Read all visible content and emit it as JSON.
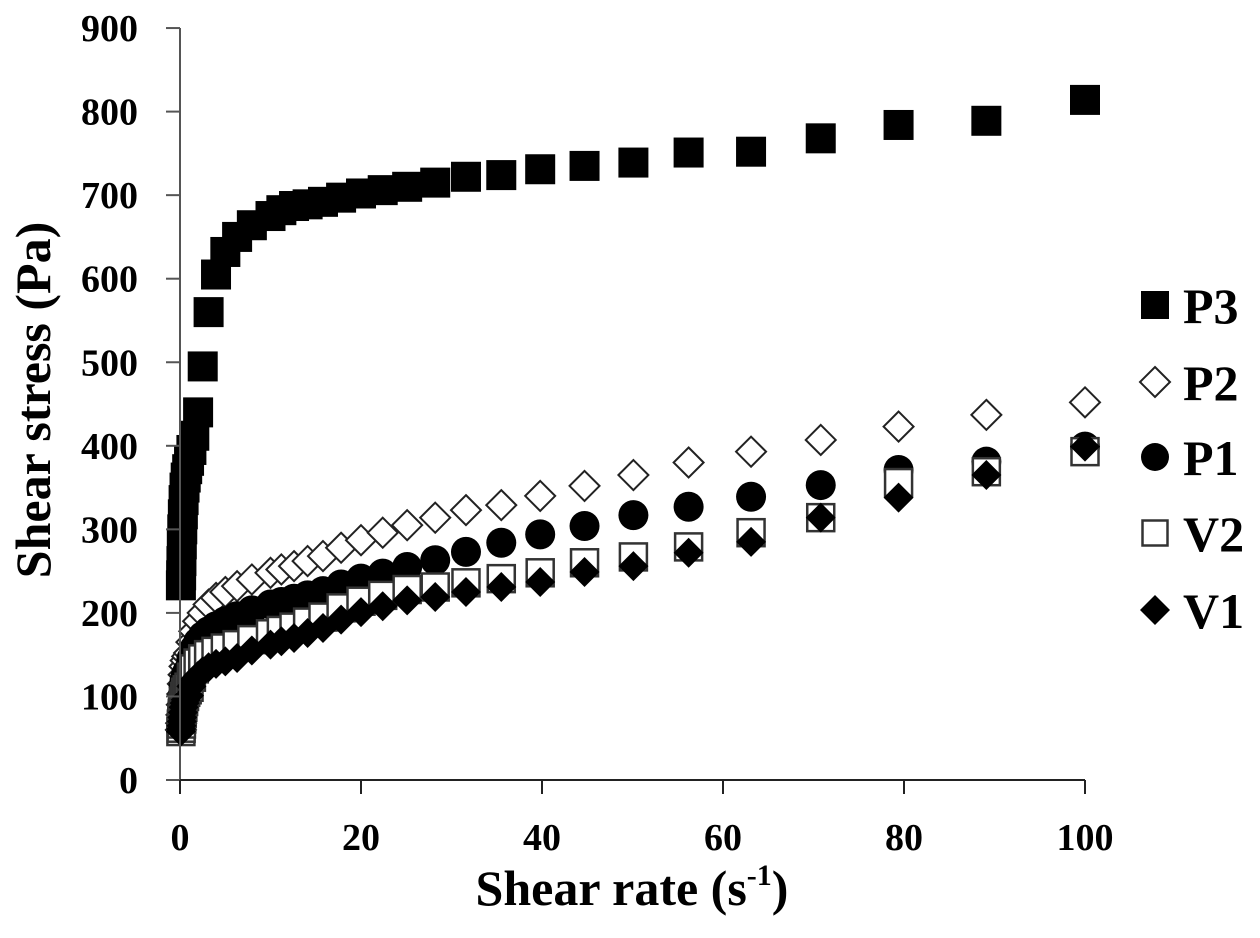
{
  "chart_data": {
    "type": "scatter",
    "title": "",
    "xlabel": "Shear rate (s-1)",
    "xlabel_main": "Shear rate (s",
    "xlabel_sup": "-1",
    "xlabel_close": ")",
    "ylabel": "Shear stress (Pa)",
    "xlim": [
      -1.5,
      100
    ],
    "ylim": [
      0,
      900
    ],
    "xticks": [
      0,
      20,
      40,
      60,
      80,
      100
    ],
    "xtick_labels": [
      "0",
      "20",
      "40",
      "60",
      "80",
      "100"
    ],
    "yticks": [
      0,
      100,
      200,
      300,
      400,
      500,
      600,
      700,
      800,
      900
    ],
    "ytick_labels": [
      "0",
      "100",
      "200",
      "300",
      "400",
      "500",
      "600",
      "700",
      "800",
      "900"
    ],
    "grid": false,
    "legend_position": "right",
    "x": [
      0.1,
      0.126,
      0.158,
      0.2,
      0.251,
      0.316,
      0.398,
      0.501,
      0.631,
      0.794,
      1,
      1.26,
      1.58,
      2,
      2.51,
      3.16,
      3.98,
      5.01,
      6.31,
      7.94,
      10,
      11.2,
      12.6,
      14.1,
      15.8,
      17.8,
      20,
      22.4,
      25.1,
      28.2,
      31.6,
      35.5,
      39.8,
      44.7,
      50.1,
      56.2,
      63.1,
      70.8,
      79.4,
      89.1,
      100
    ],
    "series": [
      {
        "name": "P3",
        "marker": "square-filled",
        "color": "#000000",
        "values": [
          233,
          245,
          262,
          282,
          300,
          318,
          335,
          350,
          362,
          372,
          382,
          395,
          412,
          440,
          495,
          560,
          605,
          632,
          650,
          664,
          675,
          682,
          687,
          689,
          692,
          697,
          702,
          706,
          710,
          715,
          722,
          724,
          731,
          735,
          739,
          751,
          752,
          768,
          784,
          789,
          814
        ]
      },
      {
        "name": "P2",
        "marker": "diamond-open",
        "color": "#000000",
        "values": [
          60,
          68,
          78,
          90,
          103,
          115,
          126,
          136,
          143,
          148,
          152,
          165,
          178,
          190,
          200,
          210,
          218,
          225,
          232,
          240,
          248,
          252,
          256,
          262,
          268,
          278,
          287,
          296,
          305,
          314,
          323,
          329,
          340,
          352,
          365,
          380,
          393,
          407,
          423,
          437,
          452
        ]
      },
      {
        "name": "P1",
        "marker": "circle-filled",
        "color": "#000000",
        "values": [
          60,
          66,
          73,
          82,
          92,
          102,
          111,
          119,
          125,
          129,
          132,
          145,
          157,
          165,
          172,
          178,
          184,
          190,
          196,
          203,
          210,
          213,
          217,
          221,
          226,
          234,
          241,
          247,
          255,
          263,
          273,
          284,
          294,
          304,
          317,
          327,
          339,
          353,
          371,
          381,
          399
        ]
      },
      {
        "name": "V2",
        "marker": "square-open",
        "color": "#000000",
        "values": [
          58,
          62,
          67,
          73,
          80,
          87,
          94,
          100,
          105,
          108,
          111,
          123,
          133,
          140,
          145,
          150,
          154,
          158,
          162,
          168,
          175,
          179,
          183,
          189,
          195,
          206,
          214,
          221,
          228,
          231,
          236,
          241,
          248,
          260,
          267,
          279,
          296,
          314,
          356,
          369,
          393
        ]
      },
      {
        "name": "V1",
        "marker": "diamond-filled",
        "color": "#000000",
        "values": [
          58,
          61,
          65,
          70,
          75,
          81,
          87,
          92,
          96,
          99,
          101,
          112,
          120,
          125,
          130,
          135,
          139,
          142,
          146,
          155,
          162,
          166,
          170,
          176,
          182,
          192,
          201,
          208,
          215,
          219,
          225,
          231,
          237,
          249,
          256,
          272,
          285,
          314,
          338,
          365,
          399
        ]
      }
    ]
  }
}
